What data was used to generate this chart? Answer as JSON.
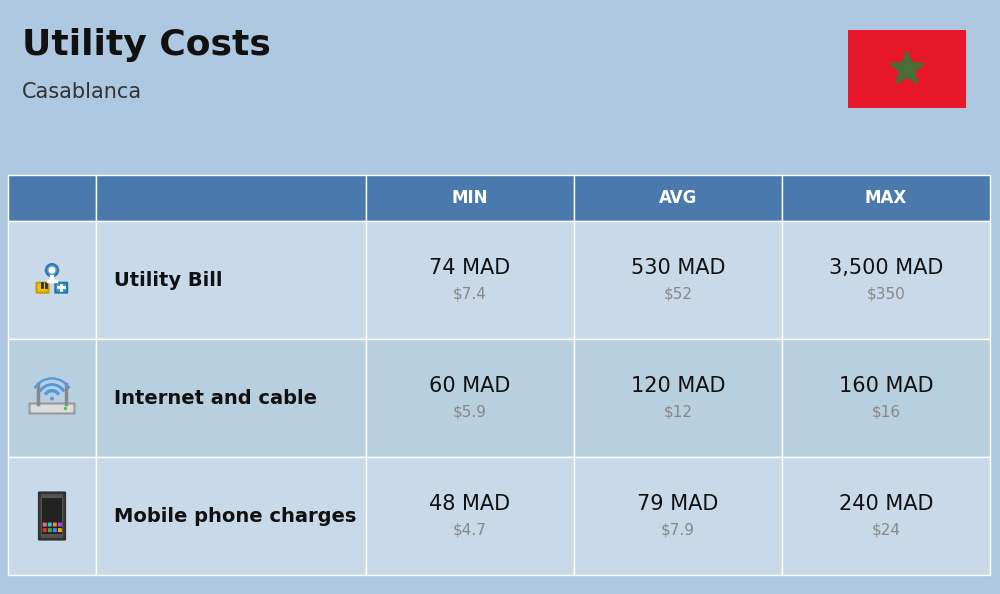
{
  "title": "Utility Costs",
  "subtitle": "Casablanca",
  "bg_color": "#adc8e0",
  "header_bg_color": "#4a7aad",
  "header_text_color": "#ffffff",
  "row_bg_color_1": "#c8daea",
  "row_bg_color_2": "#b8cfe0",
  "col_headers": [
    "MIN",
    "AVG",
    "MAX"
  ],
  "rows": [
    {
      "label": "Utility Bill",
      "min_mad": "74 MAD",
      "min_usd": "$7.4",
      "avg_mad": "530 MAD",
      "avg_usd": "$52",
      "max_mad": "3,500 MAD",
      "max_usd": "$350",
      "icon": "utility"
    },
    {
      "label": "Internet and cable",
      "min_mad": "60 MAD",
      "min_usd": "$5.9",
      "avg_mad": "120 MAD",
      "avg_usd": "$12",
      "max_mad": "160 MAD",
      "max_usd": "$16",
      "icon": "internet"
    },
    {
      "label": "Mobile phone charges",
      "min_mad": "48 MAD",
      "min_usd": "$4.7",
      "avg_mad": "79 MAD",
      "avg_usd": "$7.9",
      "max_mad": "240 MAD",
      "max_usd": "$24",
      "icon": "mobile"
    }
  ],
  "flag_color_red": "#e8182a",
  "flag_color_green": "#4a6e3a",
  "title_fontsize": 26,
  "subtitle_fontsize": 15,
  "header_fontsize": 12,
  "cell_fontsize_mad": 15,
  "cell_fontsize_usd": 11,
  "label_fontsize": 14
}
